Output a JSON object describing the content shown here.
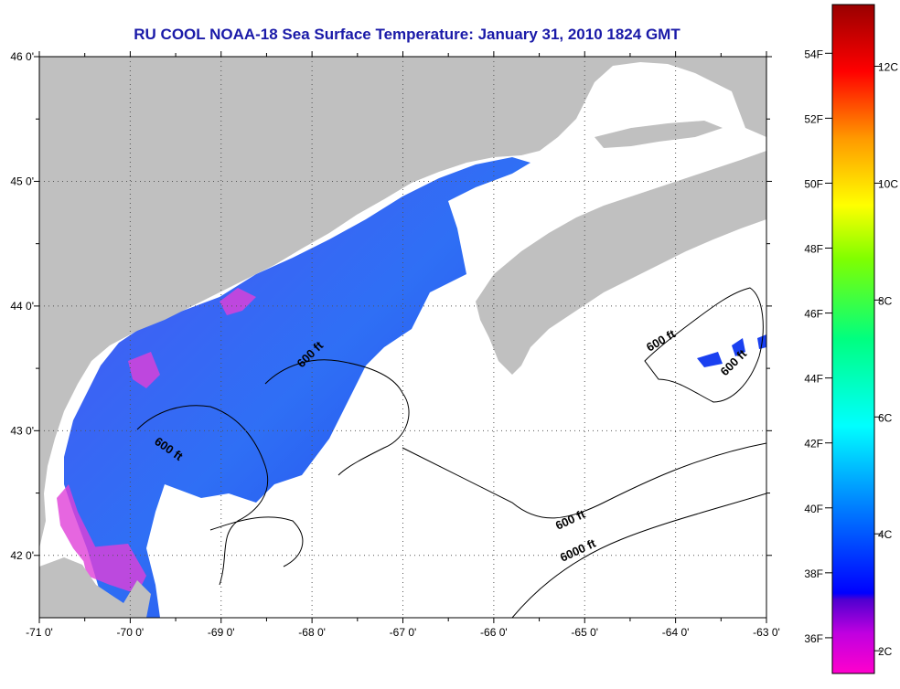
{
  "title": "RU COOL  NOAA-18  Sea Surface Temperature:  January 31, 2010 1824 GMT",
  "map": {
    "lon_range": [
      -71,
      -63
    ],
    "lat_range": [
      41.5,
      46.0
    ],
    "lon_ticks": [
      "-71 0'",
      "-70 0'",
      "-69 0'",
      "-68 0'",
      "-67 0'",
      "-66 0'",
      "-65 0'",
      "-64 0'",
      "-63 0'"
    ],
    "lat_ticks": [
      "46 0'",
      "45 0'",
      "44 0'",
      "43 0'",
      "42 0'"
    ],
    "contour_labels": [
      "600 ft",
      "600 ft",
      "600 ft",
      "600 ft",
      "6000 ft",
      "600 ft"
    ],
    "colors": {
      "land": "#c0c0c0",
      "ocean_nodata": "#ffffff",
      "grid": "#555555"
    }
  },
  "colorbar": {
    "fahrenheit_labels": [
      "54F",
      "52F",
      "50F",
      "48F",
      "46F",
      "44F",
      "42F",
      "40F",
      "38F",
      "36F"
    ],
    "celsius_labels": [
      "12C",
      "10C",
      "8C",
      "6C",
      "4C",
      "2C"
    ]
  }
}
